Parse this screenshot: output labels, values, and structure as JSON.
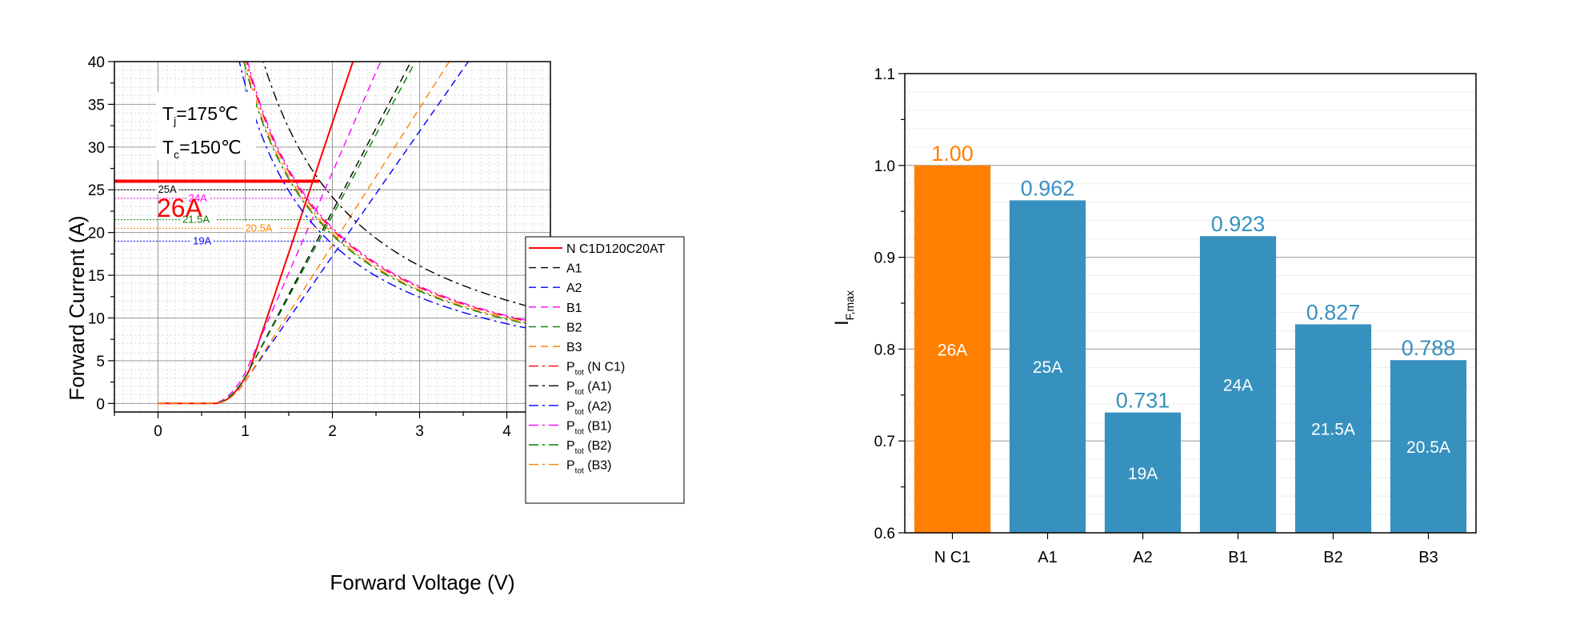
{
  "chart_data": [
    {
      "type": "line",
      "xlabel": "Forward Voltage (V)",
      "ylabel": "Forward Current (A)",
      "xlim": [
        -0.5,
        4.5
      ],
      "ylim": [
        -1,
        40
      ],
      "x_ticks": [
        0,
        1,
        2,
        3,
        4
      ],
      "y_ticks": [
        0,
        5,
        10,
        15,
        20,
        25,
        30,
        35,
        40
      ],
      "grid": true,
      "legend_position": "right-middle",
      "annotations": {
        "tj_main": "T",
        "tj_sub": "j",
        "tj_rest": "=175℃",
        "tc_main": "T",
        "tc_sub": "c",
        "tc_rest": "=150℃",
        "big_label": "26A"
      },
      "hlines": [
        {
          "value": 26,
          "label": "26A",
          "color": "#ff0000"
        },
        {
          "value": 25,
          "label": "25A",
          "color": "#000000"
        },
        {
          "value": 24,
          "label": "24A",
          "color": "#ff00ff"
        },
        {
          "value": 21.5,
          "label": "21.5A",
          "color": "#008000"
        },
        {
          "value": 20.5,
          "label": "20.5A",
          "color": "#ff8000"
        },
        {
          "value": 19,
          "label": "19A",
          "color": "#0000ff"
        }
      ],
      "series": [
        {
          "name": "N C1D120C20AT",
          "kind": "iv",
          "color": "#ff0000",
          "dash": "solid",
          "vth": 0.8,
          "k": 24.7,
          "slope": 1.3
        },
        {
          "name": "A1",
          "kind": "iv",
          "color": "#000000",
          "dash": "dashed",
          "vth": 0.78,
          "k": 22.5,
          "slope": 1.85
        },
        {
          "name": "A2",
          "kind": "iv",
          "color": "#0000ff",
          "dash": "dashed",
          "vth": 0.8,
          "k": 21.0,
          "slope": 2.3
        },
        {
          "name": "B1",
          "kind": "iv",
          "color": "#ff00ff",
          "dash": "dashed",
          "vth": 0.76,
          "k": 23.5,
          "slope": 1.6
        },
        {
          "name": "B2",
          "kind": "iv",
          "color": "#008000",
          "dash": "dashed",
          "vth": 0.78,
          "k": 22.5,
          "slope": 1.9
        },
        {
          "name": "B3",
          "kind": "iv",
          "color": "#ff8000",
          "dash": "dashed",
          "vth": 0.8,
          "k": 21.0,
          "slope": 2.1
        },
        {
          "name_main": "P",
          "name_sub": "tot",
          "name_rest": " (N C1)",
          "kind": "power",
          "color": "#ff0000",
          "dash": "dashdot",
          "p": 48.0
        },
        {
          "name_main": "P",
          "name_sub": "tot",
          "name_rest": " (A1)",
          "kind": "power",
          "color": "#000000",
          "dash": "dashdot",
          "p": 57.0
        },
        {
          "name_main": "P",
          "name_sub": "tot",
          "name_rest": " (A2)",
          "kind": "power",
          "color": "#0000ff",
          "dash": "dashdot",
          "p": 44.0
        },
        {
          "name_main": "P",
          "name_sub": "tot",
          "name_rest": " (B1)",
          "kind": "power",
          "color": "#ff00ff",
          "dash": "dashdot",
          "p": 48.5
        },
        {
          "name_main": "P",
          "name_sub": "tot",
          "name_rest": " (B2)",
          "kind": "power",
          "color": "#008000",
          "dash": "dashdot",
          "p": 46.5
        },
        {
          "name_main": "P",
          "name_sub": "tot",
          "name_rest": " (B3)",
          "kind": "power",
          "color": "#ff8000",
          "dash": "dashdot",
          "p": 47.0
        }
      ]
    },
    {
      "type": "bar",
      "ylabel_main": "I",
      "ylabel_sub": "F,max",
      "ylim": [
        0.6,
        1.1
      ],
      "y_ticks": [
        0.6,
        0.7,
        0.8,
        0.9,
        1.0,
        1.1
      ],
      "grid": true,
      "categories": [
        "N C1",
        "A1",
        "A2",
        "B1",
        "B2",
        "B3"
      ],
      "values": [
        1.0,
        0.962,
        0.731,
        0.923,
        0.827,
        0.788
      ],
      "value_labels": [
        "1.00",
        "0.962",
        "0.731",
        "0.923",
        "0.827",
        "0.788"
      ],
      "inner_labels": [
        "26A",
        "25A",
        "19A",
        "24A",
        "21.5A",
        "20.5A"
      ],
      "colors": [
        "#ff8000",
        "#3791bf",
        "#3791bf",
        "#3791bf",
        "#3791bf",
        "#3791bf"
      ]
    }
  ]
}
